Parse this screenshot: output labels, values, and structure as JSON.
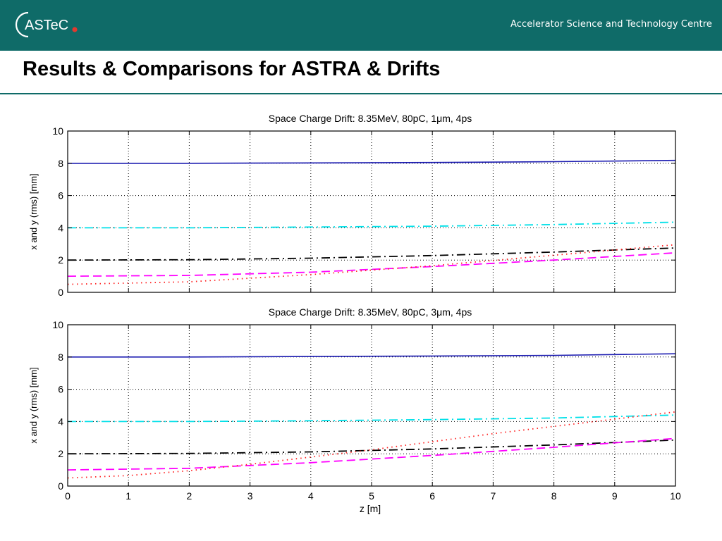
{
  "header": {
    "logo_text": "ASTeC",
    "org_name": "Accelerator Science and Technology Centre",
    "accent_color": "#0f6b68",
    "logo_dot_color": "#e03a2f"
  },
  "slide": {
    "title": "Results & Comparisons for ASTRA & Drifts"
  },
  "chart_data": [
    {
      "type": "line",
      "title": "Space Charge Drift: 8.35MeV, 80pC, 1μm, 4ps",
      "xlabel": "",
      "ylabel": "x and y (rms) [mm]",
      "xlim": [
        0,
        10
      ],
      "ylim": [
        0,
        10
      ],
      "yticks": [
        "0",
        "2",
        "4",
        "6",
        "8",
        "10"
      ],
      "xticks": [],
      "grid": true,
      "series": [
        {
          "color": "#1a1ab0",
          "style": "solid",
          "x": [
            0,
            2,
            4,
            6,
            8,
            10
          ],
          "values": [
            8.0,
            8.0,
            8.02,
            8.05,
            8.1,
            8.18
          ]
        },
        {
          "color": "#00e0e8",
          "style": "dashdot",
          "x": [
            0,
            2,
            4,
            6,
            8,
            10
          ],
          "values": [
            4.0,
            4.0,
            4.05,
            4.1,
            4.2,
            4.35
          ]
        },
        {
          "color": "#000000",
          "style": "dashdot",
          "x": [
            0,
            2,
            4,
            6,
            8,
            10
          ],
          "values": [
            2.0,
            2.02,
            2.12,
            2.28,
            2.5,
            2.75
          ]
        },
        {
          "color": "#ff00ff",
          "style": "dashed",
          "x": [
            0,
            2,
            4,
            6,
            8,
            10
          ],
          "values": [
            1.0,
            1.05,
            1.25,
            1.6,
            2.0,
            2.45
          ]
        },
        {
          "color": "#ff2020",
          "style": "dotted",
          "x": [
            0,
            2,
            4,
            6,
            8,
            10
          ],
          "values": [
            0.5,
            0.65,
            1.1,
            1.65,
            2.3,
            2.95
          ]
        }
      ]
    },
    {
      "type": "line",
      "title": "Space Charge Drift: 8.35MeV, 80pC, 3μm, 4ps",
      "xlabel": "z [m]",
      "ylabel": "x and y (rms) [mm]",
      "xlim": [
        0,
        10
      ],
      "ylim": [
        0,
        10
      ],
      "yticks": [
        "0",
        "2",
        "4",
        "6",
        "8",
        "10"
      ],
      "xticks": [
        "0",
        "1",
        "2",
        "3",
        "4",
        "5",
        "6",
        "7",
        "8",
        "9",
        "10"
      ],
      "grid": true,
      "series": [
        {
          "color": "#1a1ab0",
          "style": "solid",
          "x": [
            0,
            2,
            4,
            6,
            8,
            10
          ],
          "values": [
            8.0,
            8.0,
            8.03,
            8.06,
            8.1,
            8.2
          ]
        },
        {
          "color": "#00e0e8",
          "style": "dashdot",
          "x": [
            0,
            2,
            4,
            6,
            8,
            10
          ],
          "values": [
            4.0,
            4.0,
            4.05,
            4.12,
            4.22,
            4.4
          ]
        },
        {
          "color": "#000000",
          "style": "dashdot",
          "x": [
            0,
            2,
            4,
            6,
            8,
            10
          ],
          "values": [
            2.0,
            2.02,
            2.12,
            2.3,
            2.55,
            2.85
          ]
        },
        {
          "color": "#ff00ff",
          "style": "dashed",
          "x": [
            0,
            2,
            4,
            6,
            8,
            10
          ],
          "values": [
            1.0,
            1.1,
            1.45,
            1.9,
            2.4,
            2.95
          ]
        },
        {
          "color": "#ff2020",
          "style": "dotted",
          "x": [
            0,
            1,
            2,
            3,
            4,
            5,
            6,
            7,
            8,
            9,
            10
          ],
          "values": [
            0.5,
            0.65,
            0.95,
            1.35,
            1.8,
            2.25,
            2.75,
            3.25,
            3.7,
            4.15,
            4.6
          ]
        }
      ]
    }
  ]
}
